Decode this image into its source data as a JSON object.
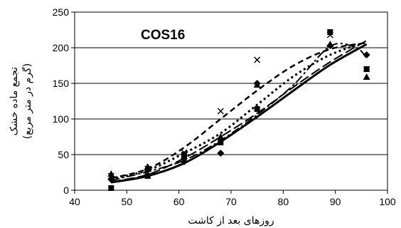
{
  "chart_data": {
    "type": "scatter",
    "title": "COS16",
    "xlabel": "روزهای بعد از کاشت",
    "ylabel": [
      "تجمع ماده خشک",
      "(گرم در متر مربع)"
    ],
    "xlim": [
      40,
      100
    ],
    "ylim": [
      0,
      250
    ],
    "x_ticks": [
      "40",
      "50",
      "60",
      "70",
      "80",
      "90",
      "100"
    ],
    "y_ticks": [
      "0",
      "50",
      "100",
      "150",
      "200",
      "250"
    ],
    "grid": "horizontal",
    "legend": "none",
    "series": [
      {
        "marker": "diamond",
        "points": [
          [
            47,
            15
          ],
          [
            54,
            28
          ],
          [
            61,
            40
          ],
          [
            68,
            52
          ],
          [
            75,
            150
          ],
          [
            89,
            203
          ],
          [
            96,
            190
          ]
        ],
        "fit_curve": {
          "style": "solid",
          "width": 3,
          "points": [
            [
              47,
              11
            ],
            [
              54,
              20
            ],
            [
              61,
              38
            ],
            [
              68,
              68
            ],
            [
              75,
              103
            ],
            [
              82,
              140
            ],
            [
              89,
              176
            ],
            [
              96,
              205
            ]
          ]
        }
      },
      {
        "marker": "square",
        "points": [
          [
            47,
            3
          ],
          [
            54,
            20
          ],
          [
            61,
            50
          ],
          [
            68,
            67
          ],
          [
            75,
            114
          ],
          [
            89,
            222
          ],
          [
            96,
            170
          ]
        ],
        "fit_curve": {
          "style": "long-dash",
          "width": 2,
          "points": [
            [
              47,
              12
            ],
            [
              54,
              22
            ],
            [
              61,
              45
            ],
            [
              68,
              75
            ],
            [
              75,
              108
            ],
            [
              82,
              145
            ],
            [
              89,
              180
            ],
            [
              96,
              210
            ]
          ]
        }
      },
      {
        "marker": "triangle",
        "points": [
          [
            47,
            23
          ],
          [
            54,
            33
          ],
          [
            61,
            48
          ],
          [
            68,
            75
          ],
          [
            75,
            148
          ],
          [
            89,
            205
          ],
          [
            96,
            159
          ]
        ],
        "fit_curve": {
          "style": "dash-dot",
          "width": 2,
          "points": [
            [
              47,
              14
            ],
            [
              54,
              26
            ],
            [
              61,
              42
            ],
            [
              68,
              70
            ],
            [
              75,
              106
            ],
            [
              82,
              148
            ],
            [
              89,
              202
            ],
            [
              94,
              200
            ],
            [
              96,
              185
            ]
          ]
        }
      },
      {
        "marker": "x",
        "points": [
          [
            47,
            20
          ],
          [
            54,
            30
          ],
          [
            61,
            53
          ],
          [
            68,
            111
          ],
          [
            75,
            183
          ],
          [
            89,
            218
          ],
          [
            96,
            170
          ]
        ],
        "fit_curve": {
          "style": "dashed",
          "width": 2.5,
          "points": [
            [
              47,
              17
            ],
            [
              54,
              30
            ],
            [
              61,
              60
            ],
            [
              68,
              100
            ],
            [
              75,
              140
            ],
            [
              82,
              175
            ],
            [
              89,
              198
            ],
            [
              96,
              207
            ]
          ]
        }
      },
      {
        "marker": "none",
        "points": [],
        "fit_curve": {
          "style": "dotted",
          "width": 3,
          "points": [
            [
              47,
              16
            ],
            [
              54,
              28
            ],
            [
              61,
              52
            ],
            [
              68,
              80
            ],
            [
              75,
              120
            ],
            [
              82,
              160
            ],
            [
              89,
              190
            ],
            [
              96,
              208
            ]
          ]
        }
      }
    ]
  }
}
